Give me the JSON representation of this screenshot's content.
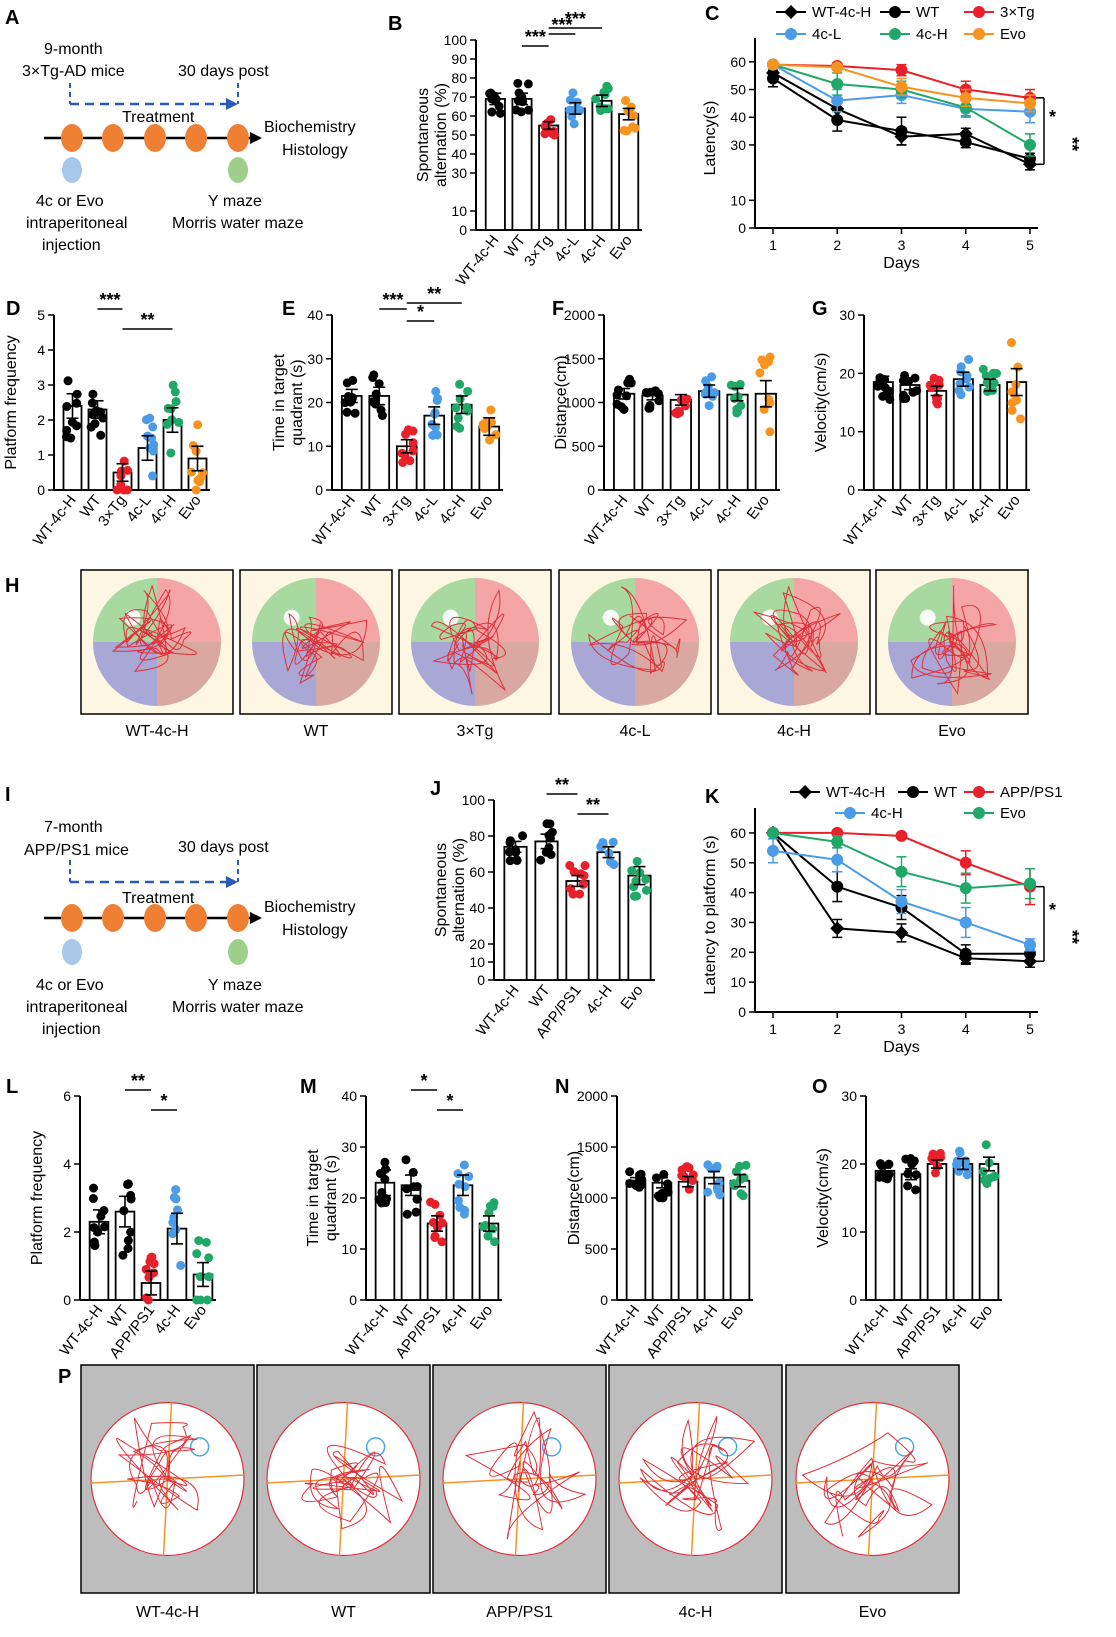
{
  "colors": {
    "wt4ch": "#000000",
    "wt": "#000000",
    "tg": "#e8202a",
    "l": "#4a9be8",
    "h": "#1fa868",
    "evo": "#f7931e",
    "schem_dot": "#ef7f33",
    "schem_blue": "#a8c8ea",
    "schem_green": "#9ed08c",
    "arrow": "#2a5cb7"
  },
  "schematic_A": {
    "label": "A",
    "line1": "9-month",
    "line2": "3×Tg-AD mice",
    "post": "30 days post",
    "treatment": "Treatment",
    "bio1": "Biochemistry",
    "bio2": "Histology",
    "inj1": "4c or Evo",
    "inj2": "intraperitoneal",
    "inj3": "injection",
    "test1": "Y maze",
    "test2": "Morris water maze"
  },
  "schematic_I": {
    "label": "I",
    "line1": "7-month",
    "line2": "APP/PS1 mice",
    "post": "30 days post",
    "treatment": "Treatment",
    "bio1": "Biochemistry",
    "bio2": "Histology",
    "inj1": "4c or Evo",
    "inj2": "intraperitoneal",
    "inj3": "injection",
    "test1": "Y maze",
    "test2": "Morris water maze"
  },
  "track_labels_H": [
    "WT-4c-H",
    "WT",
    "3×Tg",
    "4c-L",
    "4c-H",
    "Evo"
  ],
  "track_labels_P": [
    "WT-4c-H",
    "WT",
    "APP/PS1",
    "4c-H",
    "Evo"
  ],
  "panel_H_label": "H",
  "panel_P_label": "P",
  "chart_data": [
    {
      "id": "B",
      "type": "bar",
      "label": "B",
      "ylabel": "Spontaneous alternation (%)",
      "ylim": [
        0,
        100
      ],
      "yticks": [
        0,
        10,
        30,
        40,
        50,
        60,
        70,
        80,
        90,
        100
      ],
      "categories": [
        "WT-4c-H",
        "WT",
        "3×Tg",
        "4c-L",
        "4c-H",
        "Evo"
      ],
      "values": [
        69,
        69,
        55,
        64,
        68,
        61
      ],
      "errors": [
        3,
        3,
        2,
        3,
        3,
        3
      ],
      "significance": [
        {
          "from": 2,
          "to": 3,
          "text": "***"
        },
        {
          "from": 1,
          "to": 2,
          "text": "***"
        },
        {
          "from": 2,
          "to": 4,
          "text": "***"
        }
      ]
    },
    {
      "id": "C",
      "type": "line",
      "label": "C",
      "xlabel": "Days",
      "ylabel": "Latency(s)",
      "x": [
        1,
        2,
        3,
        4,
        5
      ],
      "ylim": [
        0,
        65
      ],
      "yticks": [
        0,
        10,
        30,
        40,
        50,
        60
      ],
      "series": [
        {
          "name": "WT-4c-H",
          "values": [
            56,
            43,
            33,
            34,
            23
          ],
          "errors": [
            3,
            4,
            3,
            2,
            2
          ]
        },
        {
          "name": "WT",
          "values": [
            54,
            39,
            35,
            31,
            25
          ],
          "errors": [
            3,
            4,
            5,
            2,
            2
          ]
        },
        {
          "name": "3×Tg",
          "values": [
            59,
            58.5,
            57,
            50,
            47
          ],
          "errors": [
            1,
            1,
            2,
            3,
            3
          ]
        },
        {
          "name": "4c-L",
          "values": [
            59,
            46,
            48,
            43,
            42
          ],
          "errors": [
            1,
            4,
            3,
            3,
            4
          ]
        },
        {
          "name": "4c-H",
          "values": [
            59,
            52,
            50,
            43.5,
            30
          ],
          "errors": [
            1,
            4,
            3,
            3,
            4
          ]
        },
        {
          "name": "Evo",
          "values": [
            59,
            58,
            51,
            47,
            45
          ],
          "errors": [
            1,
            1,
            3,
            3,
            3
          ]
        }
      ],
      "significance": [
        "*",
        "**"
      ]
    },
    {
      "id": "D",
      "type": "bar",
      "label": "D",
      "ylabel": "Platform frequency",
      "ylim": [
        0,
        5
      ],
      "yticks": [
        0,
        1,
        2,
        3,
        4,
        5
      ],
      "categories": [
        "WT-4c-H",
        "WT",
        "3×Tg",
        "4c-L",
        "4c-H",
        "Evo"
      ],
      "values": [
        2.4,
        2.3,
        0.5,
        1.2,
        2.0,
        0.9
      ],
      "errors": [
        0.35,
        0.25,
        0.25,
        0.35,
        0.35,
        0.35
      ],
      "significance": [
        {
          "from": 1,
          "to": 2,
          "text": "***"
        },
        {
          "from": 2,
          "to": 4,
          "text": "**"
        }
      ]
    },
    {
      "id": "E",
      "type": "bar",
      "label": "E",
      "ylabel": "Time in target quadrant (s)",
      "ylim": [
        0,
        40
      ],
      "yticks": [
        0,
        10,
        20,
        30,
        40
      ],
      "categories": [
        "WT-4c-H",
        "WT",
        "3×Tg",
        "4c-L",
        "4c-H",
        "Evo"
      ],
      "values": [
        21.5,
        21.5,
        10,
        17,
        19.5,
        14.5
      ],
      "errors": [
        1.5,
        2,
        1.5,
        2,
        2,
        2
      ],
      "significance": [
        {
          "from": 1,
          "to": 2,
          "text": "***"
        },
        {
          "from": 2,
          "to": 3,
          "text": "*"
        },
        {
          "from": 2,
          "to": 4,
          "text": "**"
        }
      ]
    },
    {
      "id": "F",
      "type": "bar",
      "label": "F",
      "ylabel": "Distance(cm)",
      "ylim": [
        0,
        2000
      ],
      "yticks": [
        0,
        500,
        1000,
        1500,
        2000
      ],
      "categories": [
        "WT-4c-H",
        "WT",
        "3×Tg",
        "4c-L",
        "4c-H",
        "Evo"
      ],
      "values": [
        1100,
        1080,
        1030,
        1130,
        1090,
        1100
      ],
      "errors": [
        60,
        50,
        60,
        70,
        70,
        150
      ],
      "significance": []
    },
    {
      "id": "G",
      "type": "bar",
      "label": "G",
      "ylabel": "Velocity(cm/s)",
      "ylim": [
        0,
        30
      ],
      "yticks": [
        0,
        10,
        20,
        30
      ],
      "categories": [
        "WT-4c-H",
        "WT",
        "3×Tg",
        "4c-L",
        "4c-H",
        "Evo"
      ],
      "values": [
        18.5,
        18,
        17,
        19,
        18,
        18.5
      ],
      "errors": [
        1,
        0.8,
        0.8,
        1.2,
        1,
        2.3
      ],
      "significance": []
    },
    {
      "id": "J",
      "type": "bar",
      "label": "J",
      "ylabel": "Spontaneous alternation (%)",
      "ylim": [
        0,
        100
      ],
      "yticks": [
        0,
        10,
        20,
        40,
        60,
        80,
        100
      ],
      "categories": [
        "WT-4c-H",
        "WT",
        "APP/PS1",
        "4c-H",
        "Evo"
      ],
      "values": [
        74,
        77,
        55,
        71,
        58
      ],
      "errors": [
        3,
        4,
        3,
        3,
        5
      ],
      "significance": [
        {
          "from": 1,
          "to": 2,
          "text": "**"
        },
        {
          "from": 2,
          "to": 3,
          "text": "**"
        }
      ]
    },
    {
      "id": "K",
      "type": "line",
      "label": "K",
      "xlabel": "Days",
      "ylabel": "Latency to platform (s)",
      "x": [
        1,
        2,
        3,
        4,
        5
      ],
      "ylim": [
        0,
        65
      ],
      "yticks": [
        0,
        10,
        20,
        30,
        40,
        50,
        60
      ],
      "series": [
        {
          "name": "WT-4c-H",
          "values": [
            60,
            28,
            26.5,
            18,
            17
          ],
          "errors": [
            0,
            3,
            3,
            2,
            2
          ]
        },
        {
          "name": "WT",
          "values": [
            60,
            42,
            35,
            19.5,
            19.5
          ],
          "errors": [
            0,
            5,
            4,
            3,
            2
          ]
        },
        {
          "name": "APP/PS1",
          "values": [
            60,
            60,
            59,
            50,
            42
          ],
          "errors": [
            0,
            0,
            1,
            4,
            6
          ]
        },
        {
          "name": "4c-H",
          "values": [
            54,
            51,
            37,
            30,
            22.5
          ],
          "errors": [
            4,
            4,
            4,
            5,
            2
          ]
        },
        {
          "name": "Evo",
          "values": [
            60,
            57,
            47,
            41.5,
            43
          ],
          "errors": [
            0,
            2,
            5,
            5,
            5
          ]
        }
      ],
      "significance": [
        "*",
        "**"
      ]
    },
    {
      "id": "L",
      "type": "bar",
      "label": "L",
      "ylabel": "Platform frequency",
      "ylim": [
        0,
        6
      ],
      "yticks": [
        0,
        2,
        4,
        6
      ],
      "categories": [
        "WT-4c-H",
        "WT",
        "APP/PS1",
        "4c-H",
        "Evo"
      ],
      "values": [
        2.3,
        2.6,
        0.5,
        2.1,
        0.75
      ],
      "errors": [
        0.35,
        0.45,
        0.35,
        0.45,
        0.35
      ],
      "significance": [
        {
          "from": 1,
          "to": 2,
          "text": "**"
        },
        {
          "from": 2,
          "to": 3,
          "text": "*"
        }
      ]
    },
    {
      "id": "M",
      "type": "bar",
      "label": "M",
      "ylabel": "Time in target quadrant (s)",
      "ylim": [
        0,
        40
      ],
      "yticks": [
        0,
        10,
        20,
        30,
        40
      ],
      "categories": [
        "WT-4c-H",
        "WT",
        "APP/PS1",
        "4c-H",
        "Evo"
      ],
      "values": [
        23,
        22.5,
        15,
        22.5,
        15
      ],
      "errors": [
        2.5,
        2,
        1.5,
        2,
        1.5
      ],
      "significance": [
        {
          "from": 1,
          "to": 2,
          "text": "*"
        },
        {
          "from": 2,
          "to": 3,
          "text": "*"
        }
      ]
    },
    {
      "id": "N",
      "type": "bar",
      "label": "N",
      "ylabel": "Distance(cm)",
      "ylim": [
        0,
        2000
      ],
      "yticks": [
        0,
        500,
        1000,
        1500,
        2000
      ],
      "categories": [
        "WT-4c-H",
        "WT",
        "APP/PS1",
        "4c-H",
        "Evo"
      ],
      "values": [
        1170,
        1150,
        1160,
        1200,
        1170
      ],
      "errors": [
        30,
        50,
        50,
        60,
        60
      ],
      "significance": []
    },
    {
      "id": "O",
      "type": "bar",
      "label": "O",
      "ylabel": "Velocity(cm/s)",
      "ylim": [
        0,
        30
      ],
      "yticks": [
        0,
        10,
        20,
        30
      ],
      "categories": [
        "WT-4c-H",
        "WT",
        "APP/PS1",
        "4c-H",
        "Evo"
      ],
      "values": [
        19,
        18.5,
        20,
        20,
        20
      ],
      "errors": [
        0.4,
        0.8,
        0.6,
        0.8,
        1
      ],
      "significance": []
    }
  ]
}
